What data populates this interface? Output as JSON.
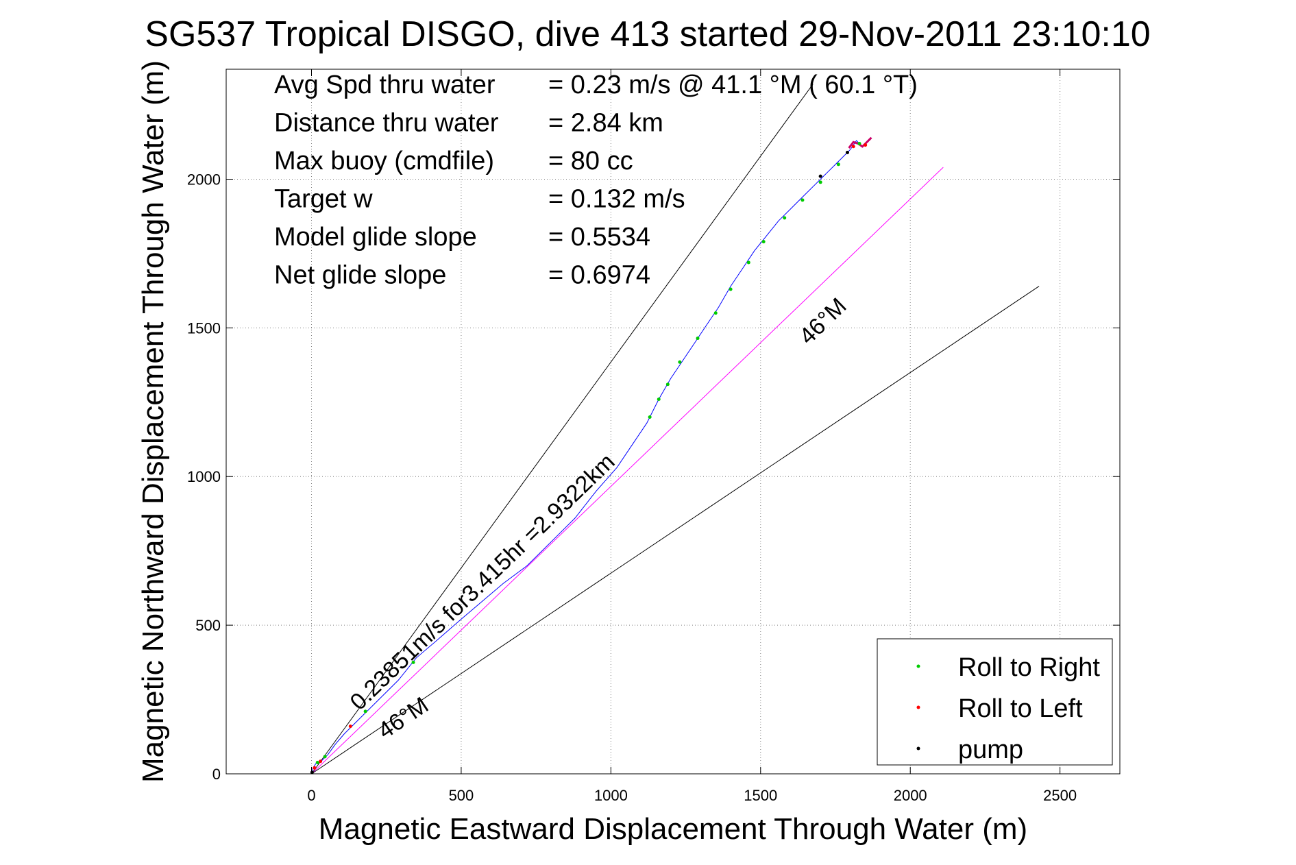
{
  "chart_data": {
    "type": "line",
    "title": "SG537 Tropical DISGO, dive 413 started 29-Nov-2011 23:10:10",
    "xlabel": "Magnetic Eastward Displacement Through Water (m)",
    "ylabel": "Magnetic Northward Displacement Through Water (m)",
    "xlim": [
      -285,
      2700
    ],
    "ylim": [
      0,
      2370
    ],
    "x_ticks": [
      0,
      500,
      1000,
      1500,
      2000,
      2500
    ],
    "y_ticks": [
      0,
      500,
      1000,
      1500,
      2000
    ],
    "x_tick_labels": [
      "0",
      "500",
      "1000",
      "1500",
      "2000",
      "2500"
    ],
    "y_tick_labels": [
      "0",
      "500",
      "1000",
      "1500",
      "2000"
    ],
    "grid": true,
    "legend_position": "bottom-right",
    "info_lines": [
      {
        "label": "Avg Spd thru water",
        "value": "=  0.23 m/s @  41.1 °M ( 60.1 °T)"
      },
      {
        "label": "Distance thru water",
        "value": "=  2.84 km"
      },
      {
        "label": "Max buoy (cmdfile)",
        "value": "= 80 cc"
      },
      {
        "label": "Target w",
        "value": "= 0.132 m/s"
      },
      {
        "label": "Model glide slope",
        "value": "= 0.5534"
      },
      {
        "label": "Net glide slope",
        "value": "= 0.6974"
      }
    ],
    "series": [
      {
        "name": "track",
        "color": "#0000ff",
        "points": [
          [
            0,
            0
          ],
          [
            5,
            20
          ],
          [
            15,
            35
          ],
          [
            35,
            45
          ],
          [
            55,
            65
          ],
          [
            80,
            100
          ],
          [
            110,
            135
          ],
          [
            140,
            165
          ],
          [
            170,
            195
          ],
          [
            200,
            225
          ],
          [
            240,
            265
          ],
          [
            290,
            315
          ],
          [
            350,
            390
          ],
          [
            420,
            450
          ],
          [
            500,
            520
          ],
          [
            570,
            580
          ],
          [
            640,
            640
          ],
          [
            720,
            700
          ],
          [
            800,
            780
          ],
          [
            880,
            860
          ],
          [
            950,
            950
          ],
          [
            1020,
            1030
          ],
          [
            1080,
            1120
          ],
          [
            1120,
            1180
          ],
          [
            1160,
            1260
          ],
          [
            1200,
            1330
          ],
          [
            1240,
            1390
          ],
          [
            1280,
            1450
          ],
          [
            1320,
            1510
          ],
          [
            1360,
            1570
          ],
          [
            1400,
            1640
          ],
          [
            1440,
            1700
          ],
          [
            1480,
            1760
          ],
          [
            1520,
            1810
          ],
          [
            1560,
            1860
          ],
          [
            1600,
            1900
          ],
          [
            1640,
            1940
          ],
          [
            1680,
            1980
          ],
          [
            1720,
            2020
          ],
          [
            1760,
            2060
          ],
          [
            1800,
            2100
          ],
          [
            1820,
            2130
          ],
          [
            1840,
            2110
          ],
          [
            1870,
            2140
          ]
        ]
      },
      {
        "name": "track overlay",
        "color": "#cc0066",
        "points": [
          [
            1795,
            2105
          ],
          [
            1810,
            2125
          ],
          [
            1825,
            2120
          ],
          [
            1840,
            2110
          ],
          [
            1855,
            2125
          ],
          [
            1870,
            2140
          ]
        ]
      },
      {
        "name": "average velocity",
        "color": "#ff00ff",
        "points": [
          [
            0,
            0
          ],
          [
            2110,
            2040
          ]
        ]
      },
      {
        "name": "bound 1",
        "color": "#000000",
        "points": [
          [
            0,
            0
          ],
          [
            1675,
            2320
          ]
        ]
      },
      {
        "name": "bound 2",
        "color": "#000000",
        "points": [
          [
            0,
            0
          ],
          [
            2430,
            1640
          ]
        ]
      }
    ],
    "roll_right_points": [
      [
        20,
        38
      ],
      [
        45,
        58
      ],
      [
        180,
        210
      ],
      [
        340,
        375
      ],
      [
        1130,
        1200
      ],
      [
        1160,
        1260
      ],
      [
        1190,
        1310
      ],
      [
        1230,
        1385
      ],
      [
        1290,
        1465
      ],
      [
        1350,
        1550
      ],
      [
        1400,
        1630
      ],
      [
        1460,
        1720
      ],
      [
        1510,
        1790
      ],
      [
        1580,
        1870
      ],
      [
        1640,
        1930
      ],
      [
        1700,
        1990
      ],
      [
        1760,
        2050
      ],
      [
        1830,
        2120
      ]
    ],
    "roll_left_points": [
      [
        10,
        20
      ],
      [
        30,
        42
      ],
      [
        130,
        160
      ],
      [
        1810,
        2110
      ],
      [
        1850,
        2115
      ]
    ],
    "pump_points": [
      [
        2,
        5
      ],
      [
        1700,
        2010
      ],
      [
        1790,
        2090
      ]
    ],
    "legend": [
      {
        "label": "Roll to Right",
        "color": "#00cc00"
      },
      {
        "label": "Roll to Left",
        "color": "#ff0000"
      },
      {
        "label": "pump",
        "color": "#000000"
      }
    ],
    "annotations": [
      {
        "text": "0.23851m/s for3.415hr =2.9322km",
        "x": 160,
        "y": 210,
        "angle_deg": 44
      },
      {
        "text": "46°M",
        "x": 245,
        "y": 115,
        "angle_deg": 34
      },
      {
        "text": "46°M",
        "x": 1660,
        "y": 1440,
        "angle_deg": 44
      }
    ]
  }
}
